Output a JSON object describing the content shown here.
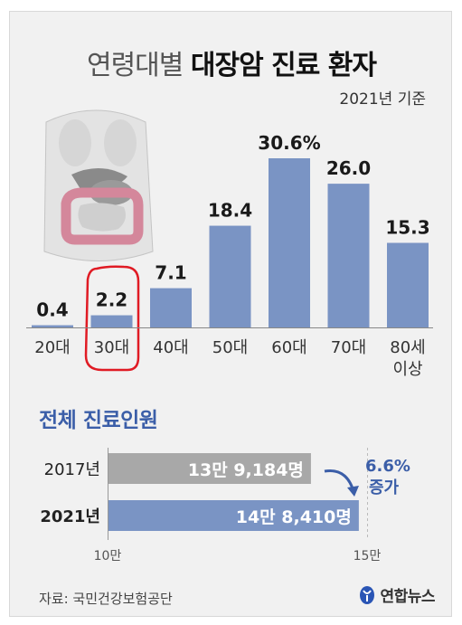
{
  "header": {
    "title_light": "연령대별",
    "title_bold": "대장암 진료 환자",
    "basis": "2021년 기준"
  },
  "chart_data": [
    {
      "type": "bar",
      "categories": [
        "20대",
        "30대",
        "40대",
        "50대",
        "60대",
        "70대",
        "80세\n이상"
      ],
      "values": [
        0.4,
        2.2,
        7.1,
        18.4,
        30.6,
        26.0,
        15.3
      ],
      "value_labels": [
        "0.4",
        "2.2",
        "7.1",
        "18.4",
        "30.6%",
        "26.0",
        "15.3"
      ],
      "unit": "%",
      "color": "#7a94c4",
      "highlighted_category": "30대",
      "highlight_color": "#e01b24"
    },
    {
      "type": "bar",
      "orientation": "horizontal",
      "title": "전체 진료인원",
      "categories": [
        "2017년",
        "2021년"
      ],
      "values": [
        139184,
        148410
      ],
      "value_labels": [
        "13만 9,184명",
        "14만 8,410명"
      ],
      "colors": [
        "#a8a8a8",
        "#7a94c4"
      ],
      "xlim": [
        100000,
        150000
      ],
      "tick_labels": [
        "10만",
        "15만"
      ],
      "annotation": [
        "6.6%",
        "증가"
      ],
      "annotation_color": "#3b5ea8"
    }
  ],
  "footer": {
    "source": "자료: 국민건강보험공단",
    "logo": "연합뉴스",
    "logo_color": "#2a55b5"
  }
}
